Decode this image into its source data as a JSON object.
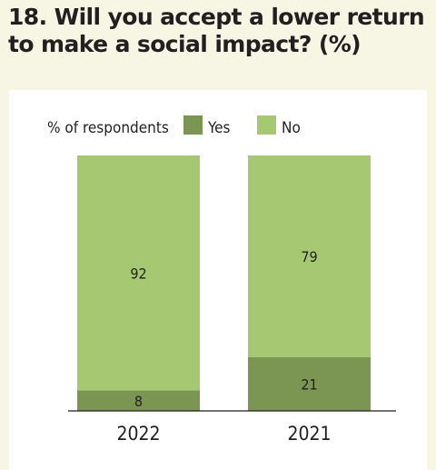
{
  "title_line1": "18. Will you accept a lower return",
  "title_line2": "to make a social impact? (%)",
  "colors": {
    "yes": "#7b9552",
    "no": "#a6c873",
    "background": "#f7f5e4",
    "panel": "#ffffff",
    "text": "#231f20"
  },
  "chart_data": {
    "type": "bar",
    "stacked": true,
    "title": "18. Will you accept a lower return to make a social impact? (%)",
    "legend_title": "% of respondents",
    "legend_position": "top",
    "categories": [
      "2022",
      "2021"
    ],
    "series": [
      {
        "name": "Yes",
        "color": "#7b9552",
        "values": [
          8,
          21
        ]
      },
      {
        "name": "No",
        "color": "#a6c873",
        "values": [
          92,
          79
        ]
      }
    ],
    "ylim": [
      0,
      100
    ],
    "grid": false,
    "xlabel": "",
    "ylabel": ""
  }
}
